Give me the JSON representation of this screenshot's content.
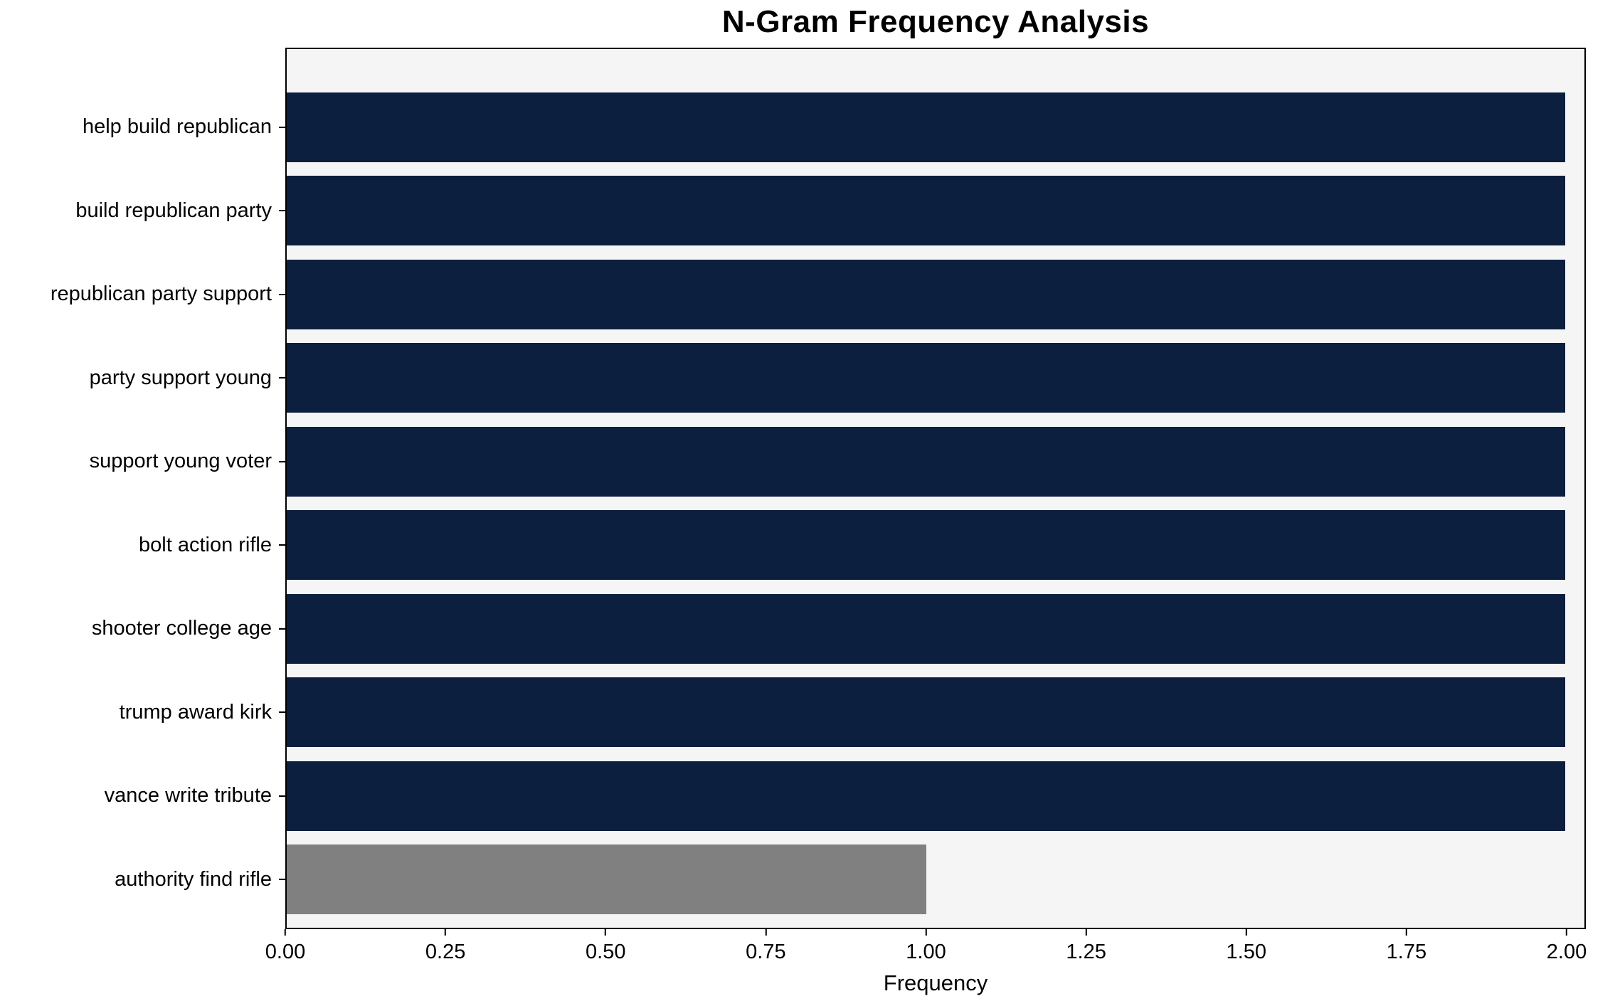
{
  "chart_data": {
    "type": "bar",
    "orientation": "horizontal",
    "title": "N-Gram Frequency Analysis",
    "xlabel": "Frequency",
    "ylabel": "",
    "categories": [
      "help build republican",
      "build republican party",
      "republican party support",
      "party support young",
      "support young voter",
      "bolt action rifle",
      "shooter college age",
      "trump award kirk",
      "vance write tribute",
      "authority find rifle"
    ],
    "values": [
      2,
      2,
      2,
      2,
      2,
      2,
      2,
      2,
      2,
      1
    ],
    "bar_colors": [
      "#0d1f3e",
      "#0d1f3e",
      "#0d1f3e",
      "#0d1f3e",
      "#0d1f3e",
      "#0d1f3e",
      "#0d1f3e",
      "#0d1f3e",
      "#0d1f3e",
      "#808080"
    ],
    "xlim": [
      0,
      2.03
    ],
    "xticks": [
      0,
      0.25,
      0.5,
      0.75,
      1.0,
      1.25,
      1.5,
      1.75,
      2.0
    ],
    "xtick_labels": [
      "0.00",
      "0.25",
      "0.50",
      "0.75",
      "1.00",
      "1.25",
      "1.50",
      "1.75",
      "2.00"
    ],
    "grid": false,
    "legend": false,
    "bar_band_fraction": 0.83,
    "colors": {
      "bar_primary": "#0d1f3e",
      "bar_highlight": "#808080",
      "plot_background": "#f5f5f5",
      "figure_background": "#ffffff",
      "axis_frame": "#000000",
      "text": "#000000"
    }
  }
}
